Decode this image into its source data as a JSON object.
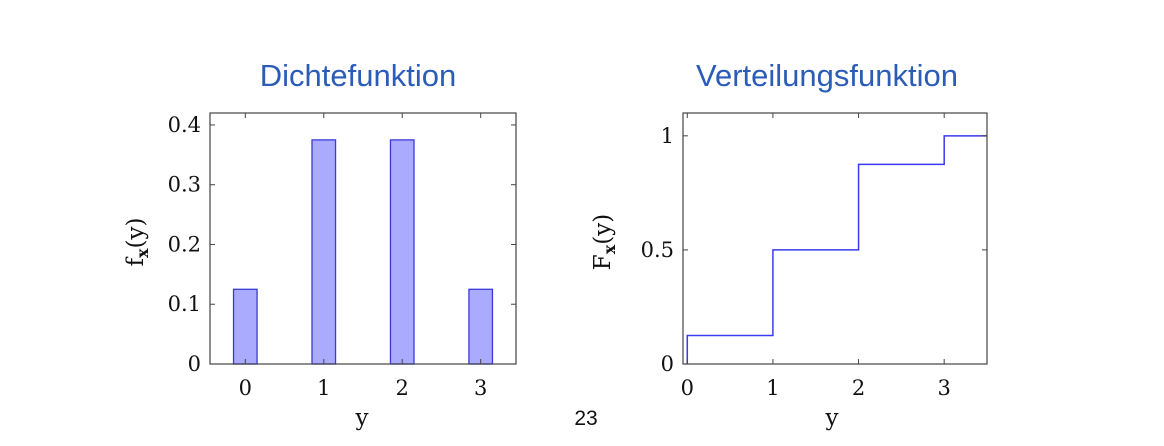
{
  "page_number": "23",
  "chart_data": [
    {
      "type": "bar",
      "title": "Dichtefunktion",
      "xlabel": "y",
      "ylabel": "f_x(y)",
      "ylabel_main": "f",
      "ylabel_sub": "x",
      "ylabel_arg": "(y)",
      "categories": [
        "0",
        "1",
        "2",
        "3"
      ],
      "x": [
        0,
        1,
        2,
        3
      ],
      "values": [
        0.125,
        0.375,
        0.375,
        0.125
      ],
      "xlim": [
        -0.45,
        3.45
      ],
      "ylim": [
        0,
        0.42
      ],
      "yticks": [
        0,
        0.1,
        0.2,
        0.3,
        0.4
      ],
      "ytick_labels": [
        "0",
        "0.1",
        "0.2",
        "0.3",
        "0.4"
      ],
      "grid": false,
      "bar_fill": "#aaaaff",
      "bar_stroke": "#3a3ad8"
    },
    {
      "type": "line",
      "title": "Verteilungsfunktion",
      "xlabel": "y",
      "ylabel": "F_x(y)",
      "ylabel_main": "F",
      "ylabel_sub": "x",
      "ylabel_arg": "(y)",
      "step": true,
      "x": [
        0,
        1,
        2,
        3,
        3.5
      ],
      "y": [
        0.125,
        0.5,
        0.875,
        1,
        1
      ],
      "xlim": [
        -0.05,
        3.5
      ],
      "ylim": [
        0,
        1.1
      ],
      "xticks": [
        0,
        1,
        2,
        3
      ],
      "xtick_labels": [
        "0",
        "1",
        "2",
        "3"
      ],
      "yticks": [
        0,
        0.5,
        1
      ],
      "ytick_labels": [
        "0",
        "0.5",
        "1"
      ],
      "grid": false,
      "line_color": "#3a3aee"
    }
  ]
}
